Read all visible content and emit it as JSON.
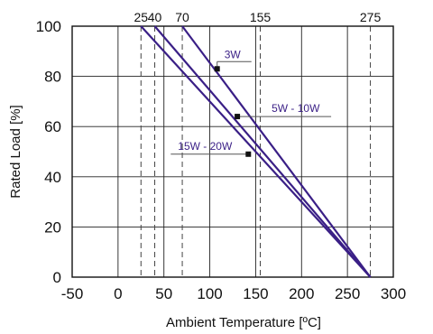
{
  "chart_data": {
    "type": "line",
    "xlabel": "Ambient Temperature  [ºC]",
    "ylabel": "Rated Load  [%]",
    "xlim": [
      -50,
      300
    ],
    "ylim": [
      0,
      100
    ],
    "x_ticks": [
      "-50",
      "0",
      "50",
      "100",
      "150",
      "200",
      "250",
      "300"
    ],
    "y_ticks": [
      "0",
      "20",
      "40",
      "60",
      "80",
      "100"
    ],
    "top_ticks": [
      {
        "label": "25",
        "x": 25
      },
      {
        "label": "40",
        "x": 40
      },
      {
        "label": "70",
        "x": 70
      },
      {
        "label": "155",
        "x": 155
      },
      {
        "label": "275",
        "x": 275
      }
    ],
    "grid": true,
    "series": [
      {
        "name": "3W",
        "x": [
          70,
          275
        ],
        "y": [
          100,
          0
        ],
        "marker": {
          "x": 108,
          "y": 83
        }
      },
      {
        "name": "5W - 10W",
        "x": [
          40,
          275
        ],
        "y": [
          100,
          0
        ],
        "marker": {
          "x": 130,
          "y": 64
        }
      },
      {
        "name": "15W - 20W",
        "x": [
          25,
          275
        ],
        "y": [
          100,
          0
        ],
        "marker": {
          "x": 142,
          "y": 49
        }
      }
    ],
    "colors": {
      "line": "#3a1f86",
      "annotation_text": "#3a1f86"
    }
  }
}
